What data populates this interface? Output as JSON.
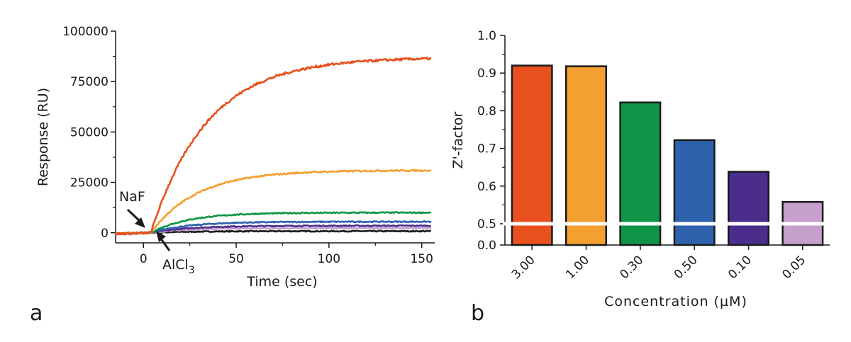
{
  "panels": {
    "a": "a",
    "b": "b"
  },
  "chart_data": [
    {
      "type": "line",
      "panel": "a",
      "xlabel": "Time (sec)",
      "ylabel": "Response (RU)",
      "xlim": [
        -15,
        157
      ],
      "ylim": [
        -5000,
        100000
      ],
      "xticks": [
        0,
        50,
        100,
        150
      ],
      "xtick_labels": [
        "0",
        "50",
        "100",
        "150"
      ],
      "yticks": [
        0,
        25000,
        50000,
        75000,
        100000
      ],
      "ytick_labels": [
        "0",
        "25000",
        "50000",
        "75000",
        "100000"
      ],
      "injection_time": 4,
      "series": [
        {
          "color": "#e8501e",
          "plateau": 87000,
          "rate": 0.033
        },
        {
          "color": "#f4a031",
          "plateau": 31000,
          "rate": 0.04
        },
        {
          "color": "#0e9548",
          "plateau": 10000,
          "rate": 0.05
        },
        {
          "color": "#2e62ad",
          "plateau": 5500,
          "rate": 0.05
        },
        {
          "color": "#4b2d8c",
          "plateau": 3500,
          "rate": 0.05
        },
        {
          "color": "#c79fcd",
          "plateau": 2300,
          "rate": 0.05
        },
        {
          "color": "#1a1a1a",
          "plateau": 800,
          "rate": 0.05
        }
      ],
      "annotations": [
        {
          "text": "NaF",
          "at_x": -1,
          "at_y": 0,
          "position": "above-left"
        },
        {
          "text": "AlCl",
          "subscript": "3",
          "at_x": 6,
          "at_y": 0,
          "position": "below-right"
        }
      ]
    },
    {
      "type": "bar",
      "panel": "b",
      "xlabel": "Concentration (µM)",
      "ylabel": "Z'-factor",
      "categories": [
        "3.00",
        "1.00",
        "0.30",
        "0.50",
        "0.10",
        "0.05"
      ],
      "values": [
        0.92,
        0.918,
        0.822,
        0.722,
        0.638,
        0.558
      ],
      "colors": [
        "#e8501e",
        "#f4a031",
        "#0e9548",
        "#2e62ad",
        "#4b2d8c",
        "#c79fcd"
      ],
      "ylim": [
        0,
        1.0
      ],
      "axis_break": 0.5,
      "yticks": [
        0.0,
        0.5,
        0.6,
        0.7,
        0.8,
        0.9,
        1.0
      ],
      "ytick_labels": [
        "0.0",
        "0.5",
        "0.6",
        "0.7",
        "0.8",
        "0.9",
        "1.0"
      ]
    }
  ]
}
